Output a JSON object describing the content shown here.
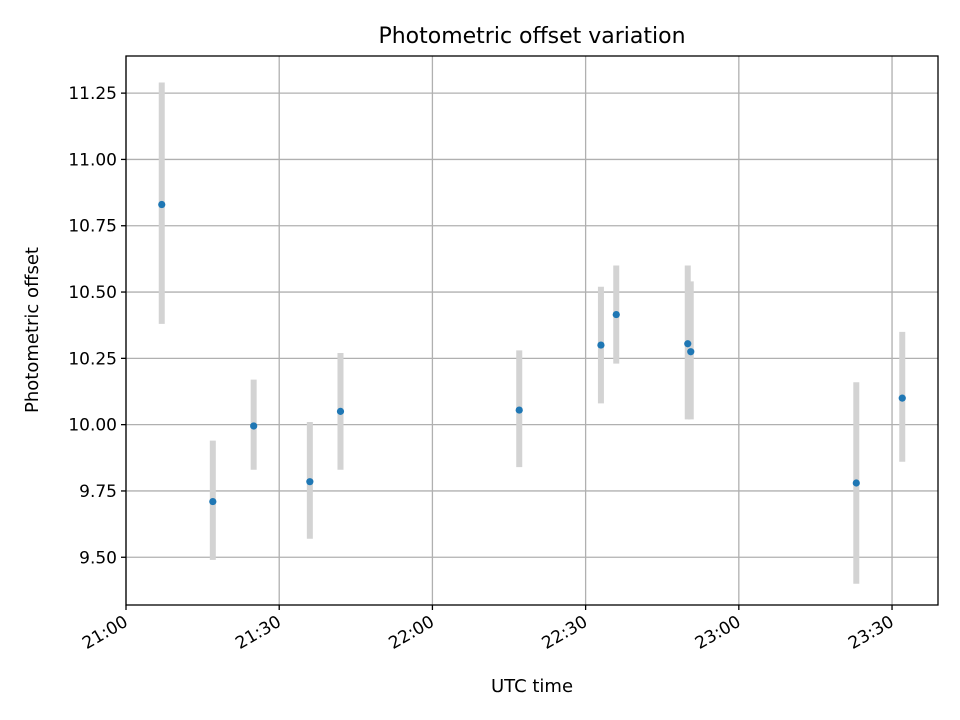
{
  "chart_data": {
    "type": "scatter",
    "title": "Photometric offset variation",
    "xlabel": "UTC time",
    "ylabel": "Photometric offset",
    "x_is_time": true,
    "xlim": [
      "21:00",
      "23:39"
    ],
    "ylim": [
      9.32,
      11.39
    ],
    "x_ticks": [
      "21:00",
      "21:30",
      "22:00",
      "22:30",
      "23:00",
      "23:30"
    ],
    "y_ticks": [
      "9.50",
      "9.75",
      "10.00",
      "10.25",
      "10.50",
      "10.75",
      "11.00",
      "11.25"
    ],
    "grid": true,
    "colors": {
      "point": "#1f77b4",
      "error_bar": "#d3d3d3"
    },
    "points": [
      {
        "x": "21:07",
        "y": 10.83,
        "y_low": 10.38,
        "y_high": 11.29
      },
      {
        "x": "21:17",
        "y": 9.71,
        "y_low": 9.49,
        "y_high": 9.94
      },
      {
        "x": "21:25",
        "y": 9.995,
        "y_low": 9.83,
        "y_high": 10.17
      },
      {
        "x": "21:36",
        "y": 9.785,
        "y_low": 9.57,
        "y_high": 10.01
      },
      {
        "x": "21:42",
        "y": 10.05,
        "y_low": 9.83,
        "y_high": 10.27
      },
      {
        "x": "22:17",
        "y": 10.055,
        "y_low": 9.84,
        "y_high": 10.28
      },
      {
        "x": "22:33",
        "y": 10.3,
        "y_low": 10.08,
        "y_high": 10.52
      },
      {
        "x": "22:36",
        "y": 10.415,
        "y_low": 10.23,
        "y_high": 10.6
      },
      {
        "x": "22:50",
        "y": 10.305,
        "y_low": 10.02,
        "y_high": 10.6
      },
      {
        "x": "22:50",
        "y": 10.275,
        "y_low": 10.02,
        "y_high": 10.54
      },
      {
        "x": "23:23",
        "y": 9.78,
        "y_low": 9.4,
        "y_high": 10.16
      },
      {
        "x": "23:32",
        "y": 10.1,
        "y_low": 9.86,
        "y_high": 10.35
      }
    ]
  }
}
